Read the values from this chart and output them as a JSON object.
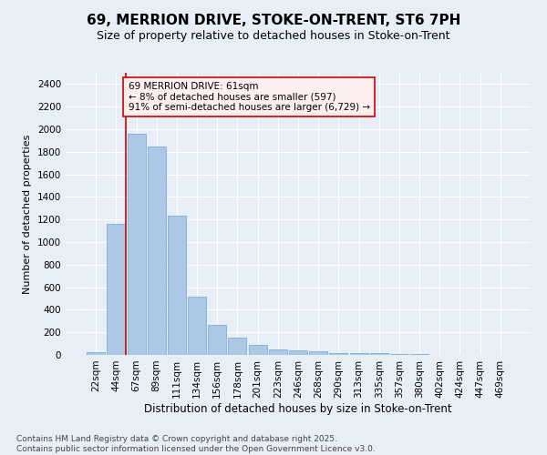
{
  "title_line1": "69, MERRION DRIVE, STOKE-ON-TRENT, ST6 7PH",
  "title_line2": "Size of property relative to detached houses in Stoke-on-Trent",
  "xlabel": "Distribution of detached houses by size in Stoke-on-Trent",
  "ylabel": "Number of detached properties",
  "categories": [
    "22sqm",
    "44sqm",
    "67sqm",
    "89sqm",
    "111sqm",
    "134sqm",
    "156sqm",
    "178sqm",
    "201sqm",
    "223sqm",
    "246sqm",
    "268sqm",
    "290sqm",
    "313sqm",
    "335sqm",
    "357sqm",
    "380sqm",
    "402sqm",
    "424sqm",
    "447sqm",
    "469sqm"
  ],
  "values": [
    25,
    1160,
    1960,
    1850,
    1230,
    515,
    270,
    155,
    90,
    50,
    40,
    30,
    20,
    20,
    15,
    5,
    5,
    3,
    3,
    2,
    2
  ],
  "bar_color": "#adc8e6",
  "bar_edge_color": "#7aafd4",
  "vline_color": "#cc0000",
  "annotation_text": "69 MERRION DRIVE: 61sqm\n← 8% of detached houses are smaller (597)\n91% of semi-detached houses are larger (6,729) →",
  "annotation_box_color": "#fff0f0",
  "annotation_box_edge": "#cc0000",
  "ylim": [
    0,
    2500
  ],
  "yticks": [
    0,
    200,
    400,
    600,
    800,
    1000,
    1200,
    1400,
    1600,
    1800,
    2000,
    2200,
    2400
  ],
  "background_color": "#e8eef5",
  "footer_text": "Contains HM Land Registry data © Crown copyright and database right 2025.\nContains public sector information licensed under the Open Government Licence v3.0.",
  "title_fontsize": 11,
  "subtitle_fontsize": 9,
  "annotation_fontsize": 7.5,
  "footer_fontsize": 6.5,
  "ylabel_fontsize": 8,
  "xlabel_fontsize": 8.5,
  "tick_fontsize": 7.5
}
